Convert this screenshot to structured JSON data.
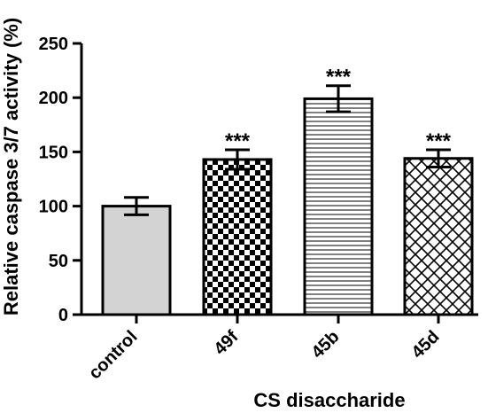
{
  "chart_data": {
    "type": "bar",
    "categories": [
      "control",
      "49f",
      "45b",
      "45d"
    ],
    "values": [
      100,
      143,
      199,
      144
    ],
    "errors": [
      8,
      9,
      12,
      8
    ],
    "annotations": [
      "",
      "***",
      "***",
      "***"
    ],
    "patterns": [
      "solid-grey",
      "checker",
      "horizontal-lines",
      "crosshatch"
    ],
    "xlabel": "CS disaccharide",
    "ylabel": "Relative caspase 3/7 activity (%)",
    "ylim": [
      0,
      250
    ],
    "yticks": [
      0,
      50,
      100,
      150,
      200,
      250
    ],
    "grid": false,
    "colors": {
      "control_fill": "#d3d3d3",
      "pattern_ink": "#000000",
      "axis": "#000000"
    }
  }
}
